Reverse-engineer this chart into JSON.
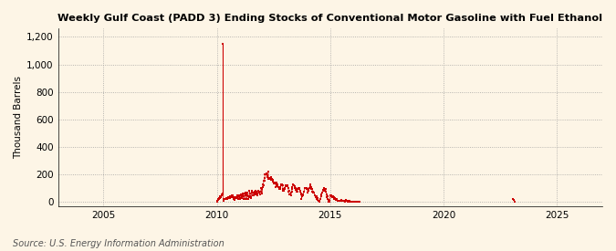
{
  "title": "Weekly Gulf Coast (PADD 3) Ending Stocks of Conventional Motor Gasoline with Fuel Ethanol",
  "ylabel": "Thousand Barrels",
  "source": "Source: U.S. Energy Information Administration",
  "background_color": "#fdf5e6",
  "line_color": "#cc0000",
  "xlim": [
    2003.0,
    2027.0
  ],
  "ylim": [
    -30,
    1260
  ],
  "yticks": [
    0,
    200,
    400,
    600,
    800,
    1000,
    1200
  ],
  "ytick_labels": [
    "0",
    "200",
    "400",
    "600",
    "800",
    "1,000",
    "1,200"
  ],
  "xticks": [
    2005,
    2010,
    2015,
    2020,
    2025
  ],
  "outlier_x": 2010.27,
  "outlier_y": 1150,
  "blip_x": 2023.1,
  "blip_y": 25,
  "active_start": 2010.0,
  "active_end": 2016.3,
  "marker_size": 2.0
}
